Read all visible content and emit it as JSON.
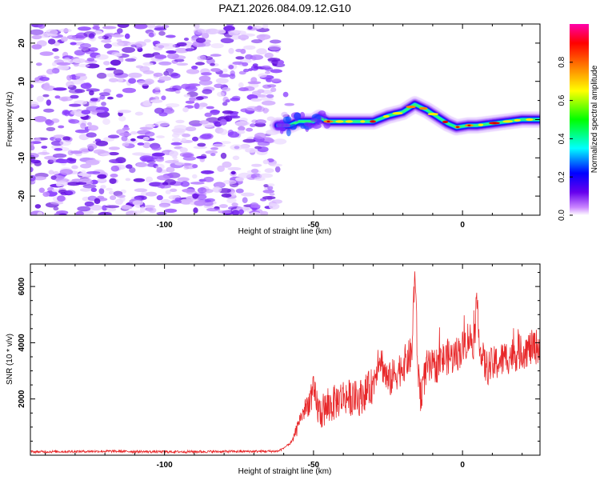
{
  "chart_data": [
    {
      "type": "heatmap",
      "title": "PAZ1.2026.084.09.12.G10",
      "xlabel": "Height of straight line (km)",
      "ylabel": "Frequency (Hz)",
      "xlim": [
        -145,
        26
      ],
      "ylim": [
        -25,
        25
      ],
      "xticks": [
        -100,
        -50,
        0
      ],
      "yticks": [
        -20,
        -10,
        0,
        10,
        20
      ],
      "noise_region_x": [
        -145,
        -62
      ],
      "signal_ridge": {
        "x": [
          -62,
          -58,
          -55,
          -50,
          -48,
          -45,
          -40,
          -35,
          -30,
          -25,
          -20,
          -16,
          -12,
          -8,
          -5,
          -2,
          2,
          5,
          10,
          15,
          20,
          26
        ],
        "y": [
          -1.5,
          -1.5,
          -0.5,
          -0.5,
          0.5,
          -0.5,
          -0.5,
          -0.5,
          -0.5,
          1.0,
          2.0,
          4.0,
          2.5,
          0.5,
          -1.0,
          -2.0,
          -1.5,
          -1.5,
          -1.0,
          -0.5,
          0.0,
          0.0
        ]
      },
      "colorbar": {
        "label": "Normalized spectral amplitude",
        "ticks": [
          "0.0",
          "0.2",
          "0.4",
          "0.6",
          "0.8"
        ],
        "range": [
          0,
          1
        ]
      }
    },
    {
      "type": "line",
      "title": "",
      "xlabel": "Height of straight line (km)",
      "ylabel": "SNR (10 * v/v)",
      "xlim": [
        -145,
        26
      ],
      "ylim": [
        0,
        6800
      ],
      "xticks": [
        -100,
        -50,
        0
      ],
      "yticks": [
        2000,
        4000,
        6000
      ],
      "line_color": "#e8282a",
      "series": [
        {
          "name": "SNR",
          "x": [
            -145,
            -120,
            -100,
            -80,
            -62,
            -60,
            -57,
            -55,
            -52,
            -50,
            -48,
            -45,
            -40,
            -35,
            -30,
            -28,
            -25,
            -20,
            -17,
            -16,
            -15,
            -14,
            -12,
            -10,
            -8,
            -5,
            -3,
            0,
            2,
            4,
            5,
            6,
            8,
            10,
            15,
            20,
            26
          ],
          "y": [
            120,
            140,
            120,
            130,
            140,
            250,
            500,
            1200,
            1800,
            2200,
            1500,
            1700,
            2100,
            2000,
            2500,
            3600,
            2600,
            3200,
            3600,
            6700,
            3000,
            2200,
            3100,
            3100,
            3300,
            3500,
            3500,
            3800,
            4200,
            4000,
            5500,
            3600,
            3100,
            3200,
            3500,
            3700,
            3900
          ]
        }
      ]
    }
  ]
}
